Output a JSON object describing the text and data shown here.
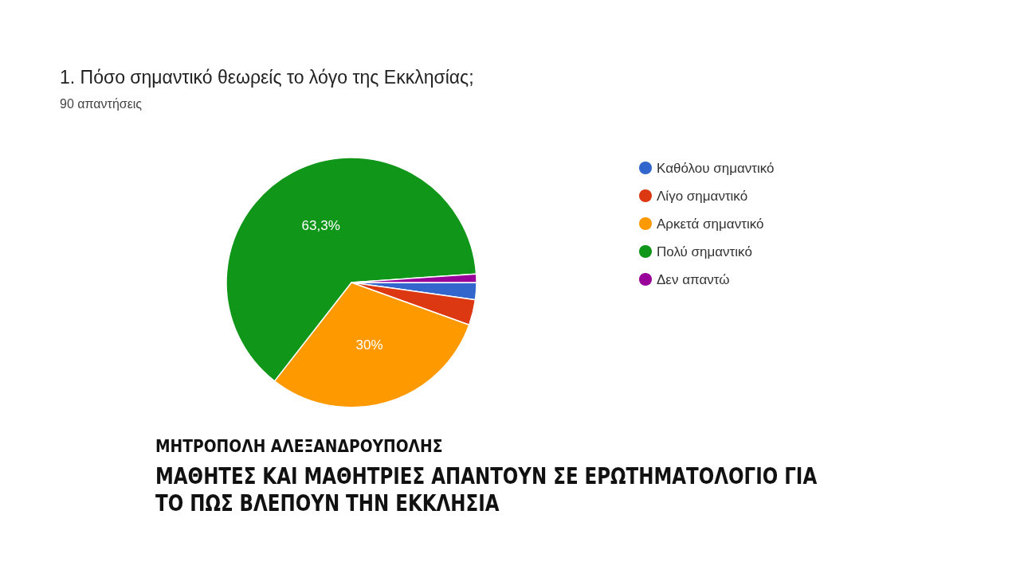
{
  "chart_data": {
    "type": "pie",
    "title": "1. Πόσο σημαντικό θεωρείς το λόγο της Εκκλησίας;",
    "subtitle": "90 απαντήσεις",
    "categories": [
      "Καθόλου σημαντικό",
      "Λίγο σημαντικό",
      "Αρκετά σημαντικό",
      "Πολύ σημαντικό",
      "Δεν απαντώ"
    ],
    "values": [
      2.2,
      3.3,
      30,
      63.3,
      1.1
    ],
    "colors": [
      "#3366cc",
      "#dc3912",
      "#ff9900",
      "#109618",
      "#990099"
    ],
    "value_labels": [
      null,
      null,
      "30%",
      "63,3%",
      null
    ],
    "legend": "right",
    "annotations": [
      "ΜΗΤΡΟΠΟΛΗ ΑΛΕΞΑΝΔΡΟΥΠΟΛΗΣ",
      "ΜΑΘΗΤΕΣ ΚΑΙ ΜΑΘΗΤΡΙΕΣ ΑΠΑΝΤΟΥΝ ΣΕ ΕΡΩΤΗΜΑΤΟΛΟΓΙΟ ΓΙΑ ΤΟ ΠΩΣ ΒΛΕΠΟΥΝ ΤΗΝ ΕΚΚΛΗΣΙΑ"
    ]
  }
}
